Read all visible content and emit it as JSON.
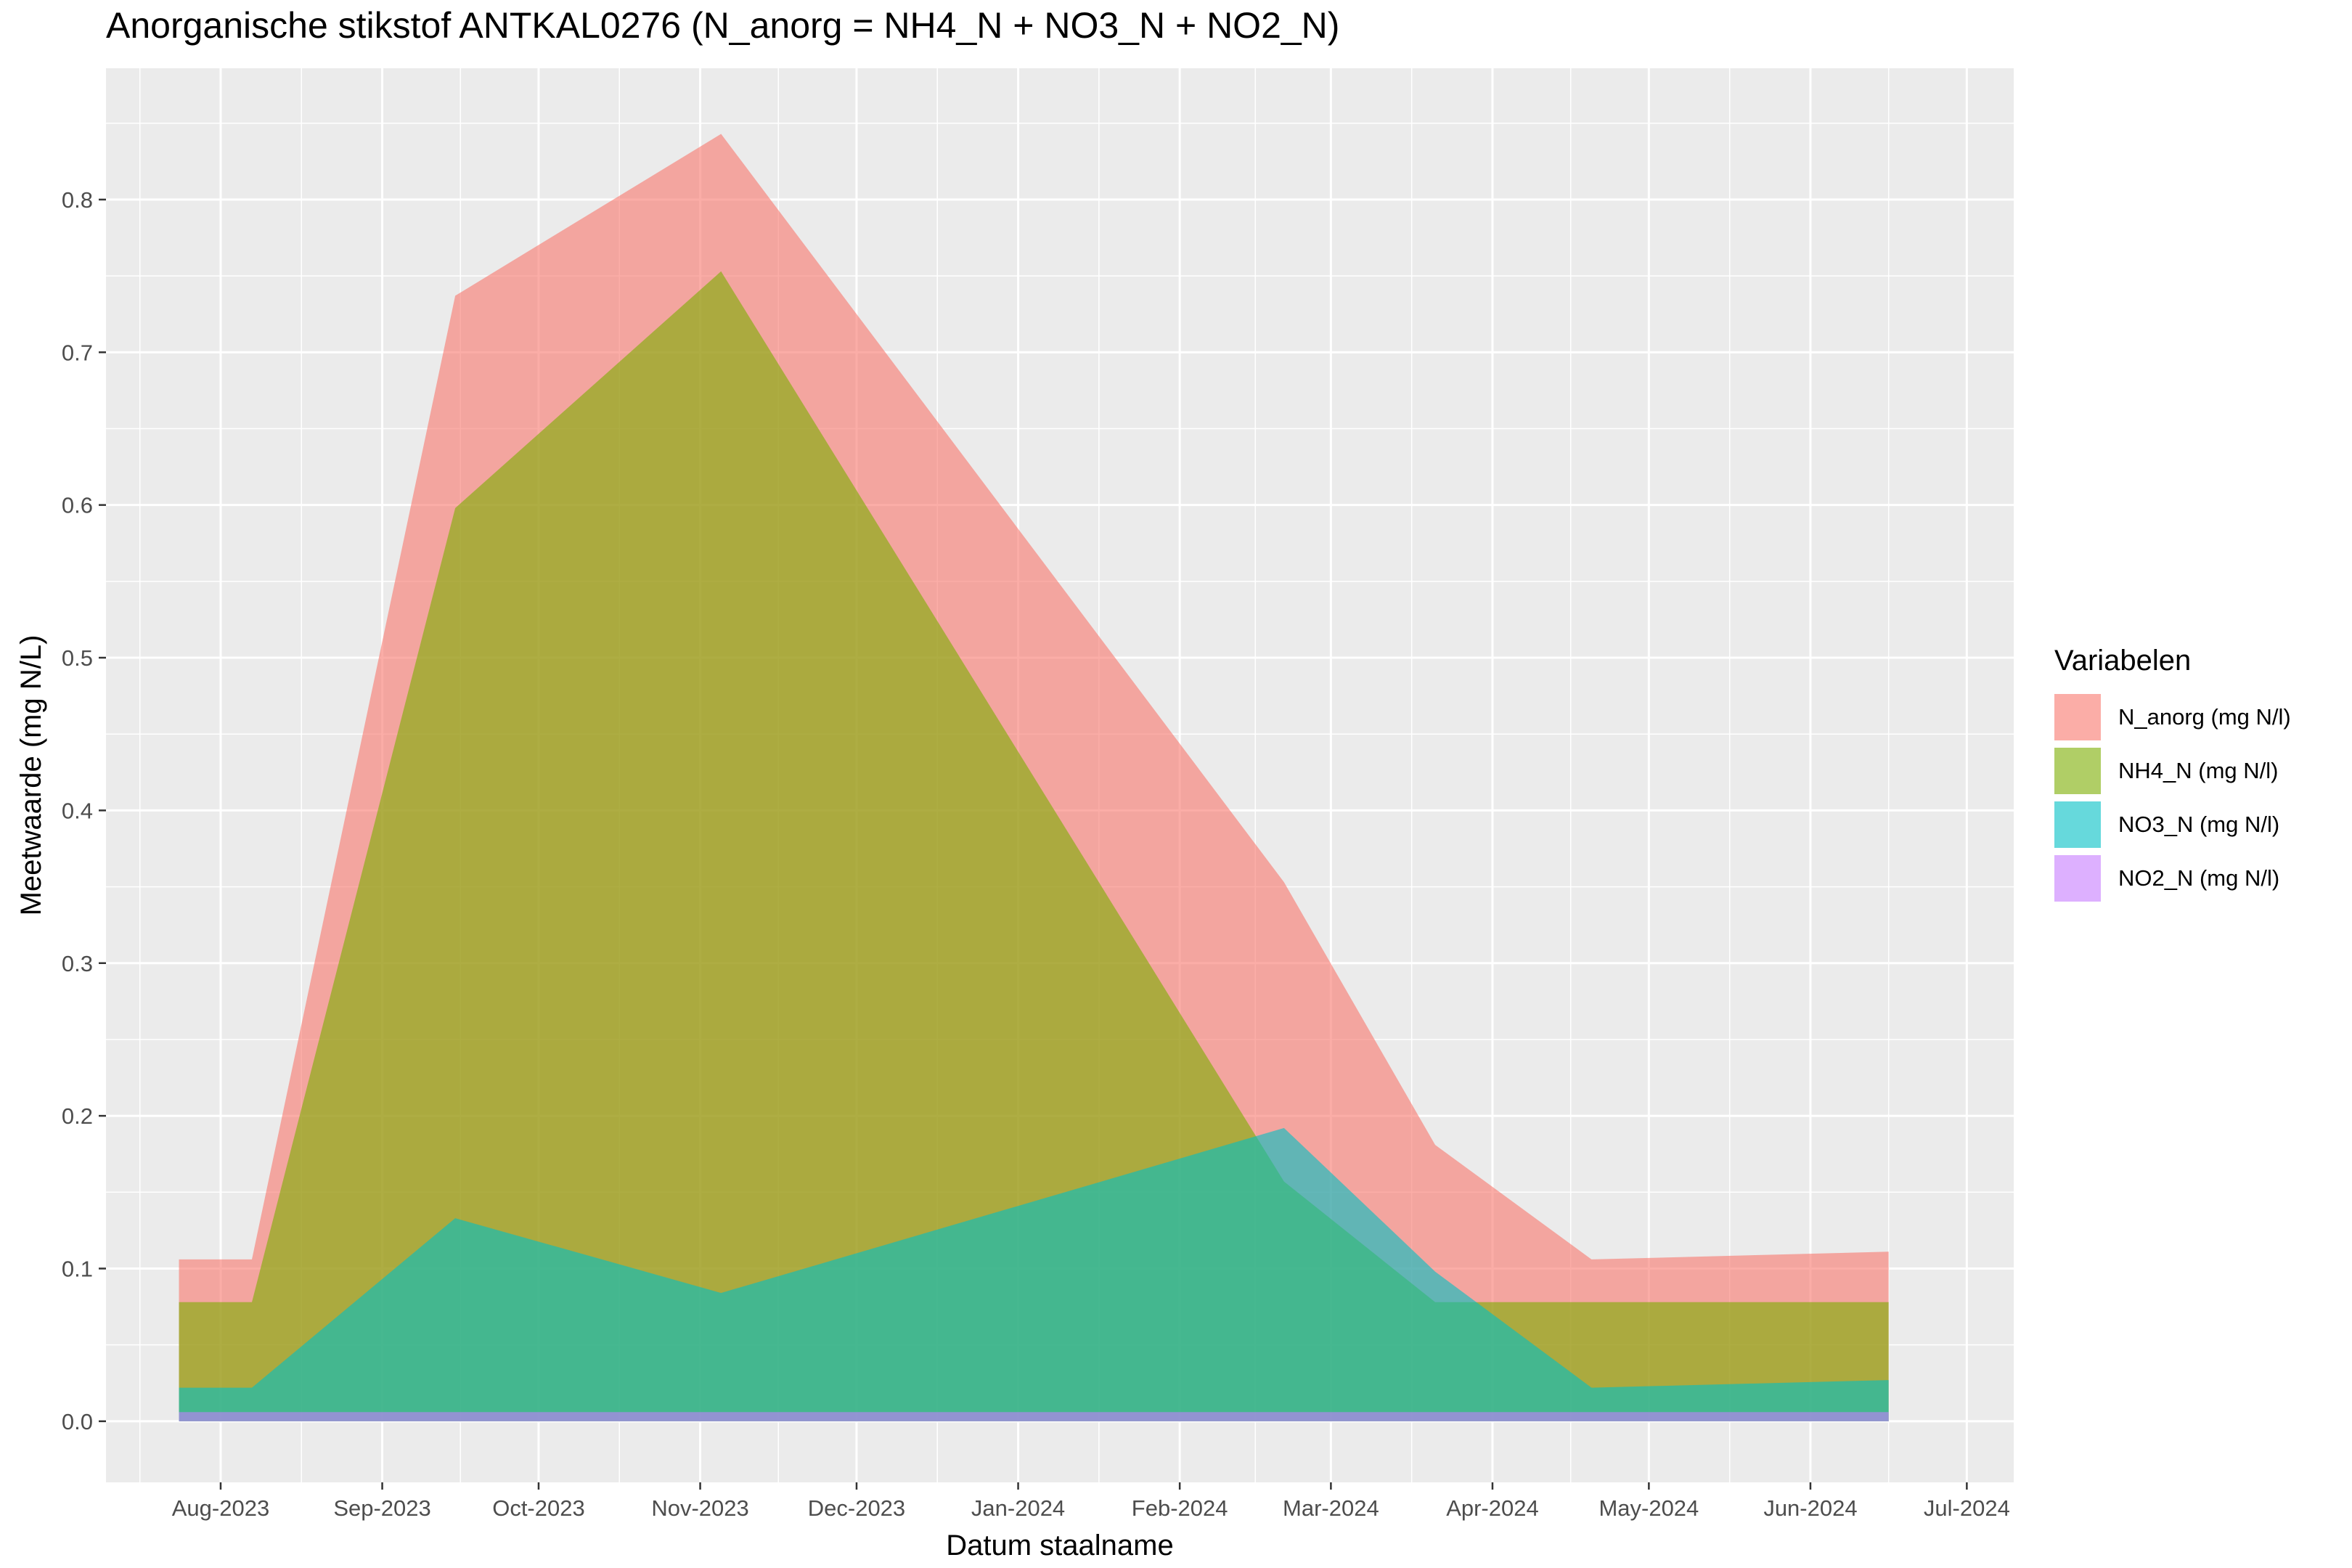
{
  "chart_data": {
    "type": "area",
    "title": "Anorganische stikstof ANTKAL0276 (N_anorg = NH4_N + NO3_N + NO2_N)",
    "xlabel": "Datum staalname",
    "ylabel": "Meetwaarde (mg N/L)",
    "x_ticks": [
      "Aug-2023",
      "Sep-2023",
      "Oct-2023",
      "Nov-2023",
      "Dec-2023",
      "Jan-2024",
      "Feb-2024",
      "Mar-2024",
      "Apr-2024",
      "May-2024",
      "Jun-2024",
      "Jul-2024"
    ],
    "y_ticks": [
      "0.0",
      "0.1",
      "0.2",
      "0.3",
      "0.4",
      "0.5",
      "0.6",
      "0.7",
      "0.8"
    ],
    "ylim": [
      -0.04,
      0.886
    ],
    "xlim": [
      "2023-07-10",
      "2024-07-10"
    ],
    "x": [
      "2023-07-24",
      "2023-08-07",
      "2023-09-15",
      "2023-11-05",
      "2024-02-21",
      "2024-03-21",
      "2024-04-20",
      "2024-06-16"
    ],
    "series": [
      {
        "name": "N_anorg (mg N/l)",
        "color": "#F8766D",
        "values": [
          0.106,
          0.106,
          0.737,
          0.843,
          0.353,
          0.181,
          0.106,
          0.111
        ]
      },
      {
        "name": "NH4_N (mg N/l)",
        "color": "#7CAE00",
        "values": [
          0.078,
          0.078,
          0.598,
          0.753,
          0.157,
          0.078,
          0.078,
          0.078
        ]
      },
      {
        "name": "NO3_N (mg N/l)",
        "color": "#00BFC4",
        "values": [
          0.022,
          0.022,
          0.133,
          0.084,
          0.192,
          0.098,
          0.022,
          0.027
        ]
      },
      {
        "name": "NO2_N (mg N/l)",
        "color": "#C77CFF",
        "values": [
          0.006,
          0.006,
          0.006,
          0.006,
          0.006,
          0.006,
          0.006,
          0.006
        ]
      }
    ],
    "legend_title": "Variabelen",
    "legend_position": "right",
    "grid": true
  }
}
